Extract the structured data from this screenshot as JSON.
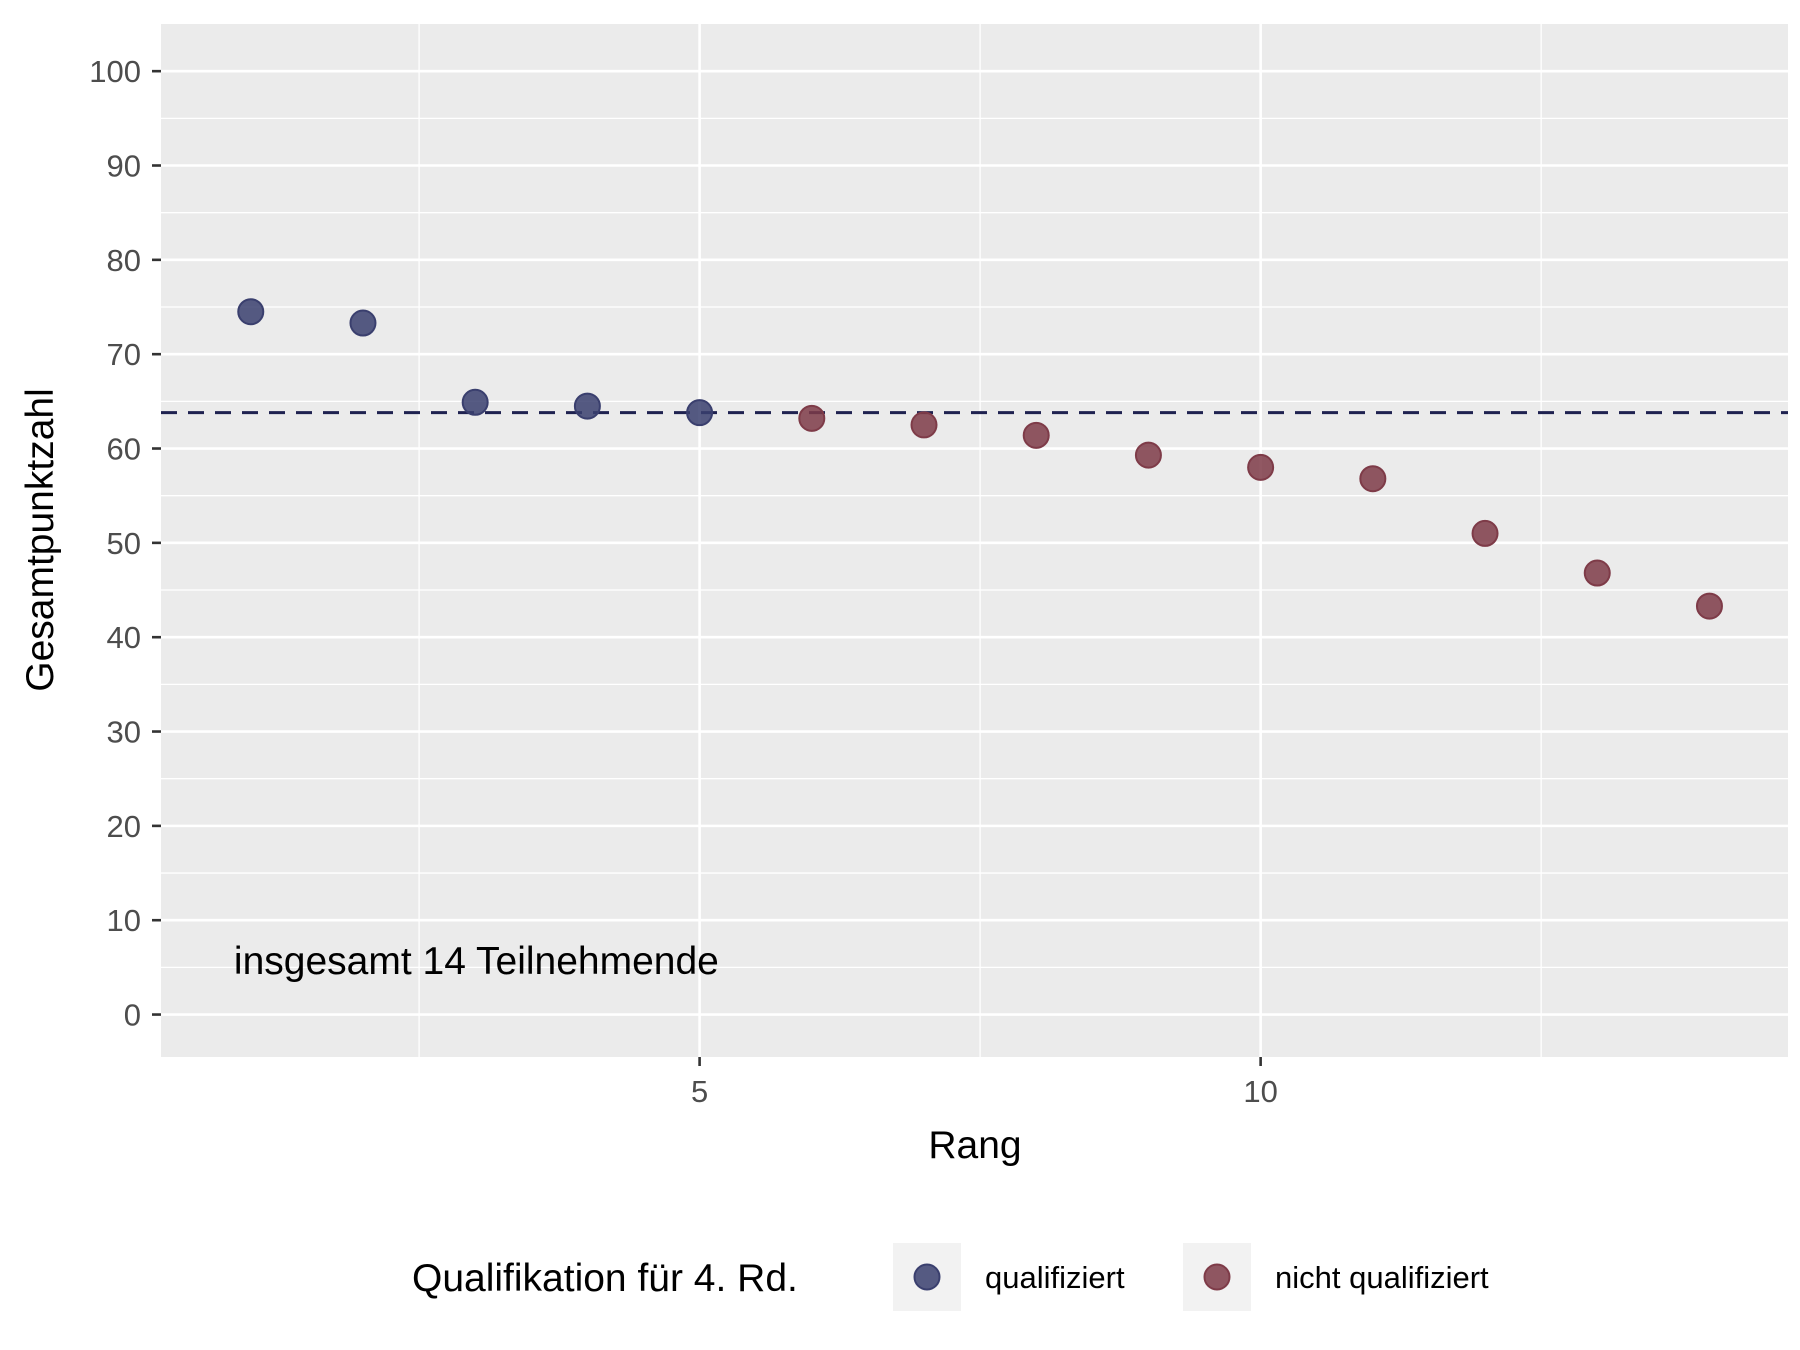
{
  "chart_data": {
    "type": "scatter",
    "xlabel": "Rang",
    "ylabel": "Gesamtpunktzahl",
    "xlim": [
      0.2,
      14.7
    ],
    "ylim": [
      -4.5,
      105
    ],
    "x_ticks": [
      5,
      10
    ],
    "x_tick_labels": [
      "5",
      "10"
    ],
    "y_ticks": [
      0,
      10,
      20,
      30,
      40,
      50,
      60,
      70,
      80,
      90,
      100
    ],
    "y_tick_labels": [
      "0",
      "10",
      "20",
      "30",
      "40",
      "50",
      "60",
      "70",
      "80",
      "90",
      "100"
    ],
    "grid": true,
    "background": "#EBEBEB",
    "threshold": {
      "y": 63.8,
      "style": "dashed",
      "color": "#1F2250"
    },
    "annotation": {
      "text": "insgesamt 14 Teilnehmende",
      "x": 0.85,
      "y": 5.8
    },
    "legend": {
      "title": "Qualifikation für 4. Rd.",
      "position": "bottom"
    },
    "series": [
      {
        "name": "qualifiziert",
        "color": "#3A3F6E",
        "x": [
          1,
          2,
          3,
          4,
          5
        ],
        "y": [
          74.5,
          73.3,
          64.9,
          64.5,
          63.8
        ]
      },
      {
        "name": "nicht qualifiziert",
        "color": "#7E3B48",
        "x": [
          6,
          7,
          8,
          9,
          10,
          11,
          12,
          13,
          14
        ],
        "y": [
          63.2,
          62.5,
          61.4,
          59.3,
          58.0,
          56.8,
          51.0,
          46.8,
          43.3
        ]
      }
    ]
  }
}
